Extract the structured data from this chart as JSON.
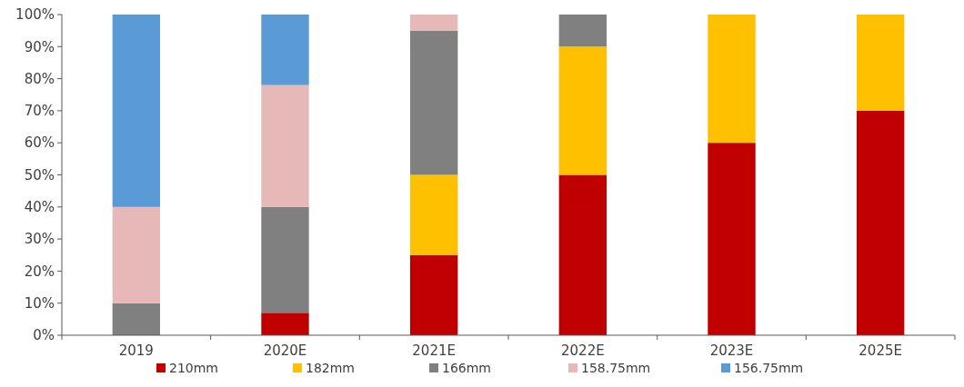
{
  "chart_data": {
    "type": "bar",
    "stacked": true,
    "categories": [
      "2019",
      "2020E",
      "2021E",
      "2022E",
      "2023E",
      "2025E"
    ],
    "series": [
      {
        "name": "210mm",
        "color": "#c00000",
        "values": [
          0,
          7,
          25,
          50,
          60,
          70
        ]
      },
      {
        "name": "182mm",
        "color": "#ffc000",
        "values": [
          0,
          0,
          25,
          40,
          40,
          30
        ]
      },
      {
        "name": "166mm",
        "color": "#808080",
        "values": [
          10,
          33,
          45,
          10,
          0,
          0
        ]
      },
      {
        "name": "158.75mm",
        "color": "#e6b9b8",
        "values": [
          30,
          38,
          5,
          0,
          0,
          0
        ]
      },
      {
        "name": "156.75mm",
        "color": "#5b9bd5",
        "values": [
          60,
          22,
          0,
          0,
          0,
          0
        ]
      }
    ],
    "ylim": [
      0,
      100
    ],
    "yticks": [
      {
        "value": 0,
        "label": "0%"
      },
      {
        "value": 10,
        "label": "10%"
      },
      {
        "value": 20,
        "label": "20%"
      },
      {
        "value": 30,
        "label": "30%"
      },
      {
        "value": 40,
        "label": "40%"
      },
      {
        "value": 50,
        "label": "50%"
      },
      {
        "value": 60,
        "label": "60%"
      },
      {
        "value": 70,
        "label": "70%"
      },
      {
        "value": 80,
        "label": "80%"
      },
      {
        "value": 90,
        "label": "90%"
      },
      {
        "value": 100,
        "label": "100%"
      }
    ],
    "grid": false,
    "legend": "bottom"
  }
}
